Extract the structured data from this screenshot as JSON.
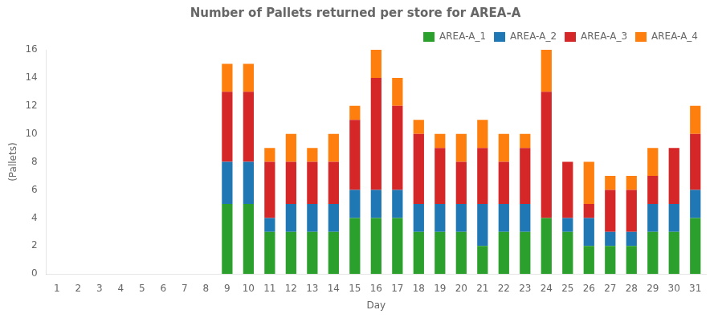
{
  "chart_data": {
    "type": "bar",
    "stacked": true,
    "title": "Number of Pallets returned per store for AREA-A",
    "xlabel": "Day",
    "ylabel": "(Pallets)",
    "categories": [
      1,
      2,
      3,
      4,
      5,
      6,
      7,
      8,
      9,
      10,
      11,
      12,
      13,
      14,
      15,
      16,
      17,
      18,
      19,
      20,
      21,
      22,
      23,
      24,
      25,
      26,
      27,
      28,
      29,
      30,
      31
    ],
    "series": [
      {
        "name": "AREA-A_1",
        "color": "#2ca02c",
        "values": [
          0,
          0,
          0,
          0,
          0,
          0,
          0,
          0,
          5,
          5,
          3,
          3,
          3,
          3,
          4,
          4,
          4,
          3,
          3,
          3,
          2,
          3,
          3,
          4,
          3,
          2,
          2,
          2,
          3,
          3,
          4
        ]
      },
      {
        "name": "AREA-A_2",
        "color": "#1f77b4",
        "values": [
          0,
          0,
          0,
          0,
          0,
          0,
          0,
          0,
          3,
          3,
          1,
          2,
          2,
          2,
          2,
          2,
          2,
          2,
          2,
          2,
          3,
          2,
          2,
          0,
          1,
          2,
          1,
          1,
          2,
          2,
          2
        ]
      },
      {
        "name": "AREA-A_3",
        "color": "#d62728",
        "values": [
          0,
          0,
          0,
          0,
          0,
          0,
          0,
          0,
          5,
          5,
          4,
          3,
          3,
          3,
          5,
          8,
          6,
          5,
          4,
          3,
          4,
          3,
          4,
          9,
          4,
          1,
          3,
          3,
          2,
          4,
          4
        ]
      },
      {
        "name": "AREA-A_4",
        "color": "#ff7f0e",
        "values": [
          0,
          0,
          0,
          0,
          0,
          0,
          0,
          0,
          2,
          2,
          1,
          2,
          1,
          2,
          1,
          2,
          2,
          1,
          1,
          2,
          2,
          2,
          1,
          3,
          0,
          3,
          1,
          1,
          2,
          0,
          2
        ]
      }
    ],
    "ylim": [
      0,
      16
    ],
    "yticks": [
      0,
      2,
      4,
      6,
      8,
      10,
      12,
      14,
      16
    ],
    "grid": false,
    "legend": "upper right"
  }
}
